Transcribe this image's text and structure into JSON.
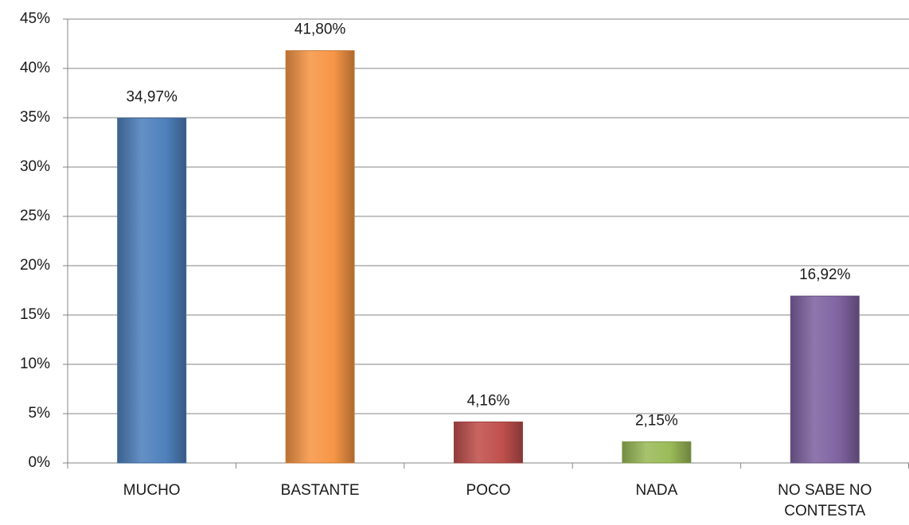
{
  "chart_data": {
    "type": "bar",
    "categories": [
      "MUCHO",
      "BASTANTE",
      "POCO",
      "NADA",
      "NO SABE NO CONTESTA"
    ],
    "values": [
      34.97,
      41.8,
      4.16,
      2.15,
      16.92
    ],
    "value_labels": [
      "34,97%",
      "41,80%",
      "4,16%",
      "2,15%",
      "16,92%"
    ],
    "colors": [
      "#4f81bd",
      "#f79646",
      "#c0504d",
      "#9bbb59",
      "#8064a2"
    ],
    "ylim": [
      0,
      45
    ],
    "yticks": [
      {
        "value": 0,
        "label": "0%"
      },
      {
        "value": 5,
        "label": "5%"
      },
      {
        "value": 10,
        "label": "10%"
      },
      {
        "value": 15,
        "label": "15%"
      },
      {
        "value": 20,
        "label": "20%"
      },
      {
        "value": 25,
        "label": "25%"
      },
      {
        "value": 30,
        "label": "30%"
      },
      {
        "value": 35,
        "label": "35%"
      },
      {
        "value": 40,
        "label": "40%"
      },
      {
        "value": 45,
        "label": "45%"
      }
    ],
    "grid": true
  }
}
